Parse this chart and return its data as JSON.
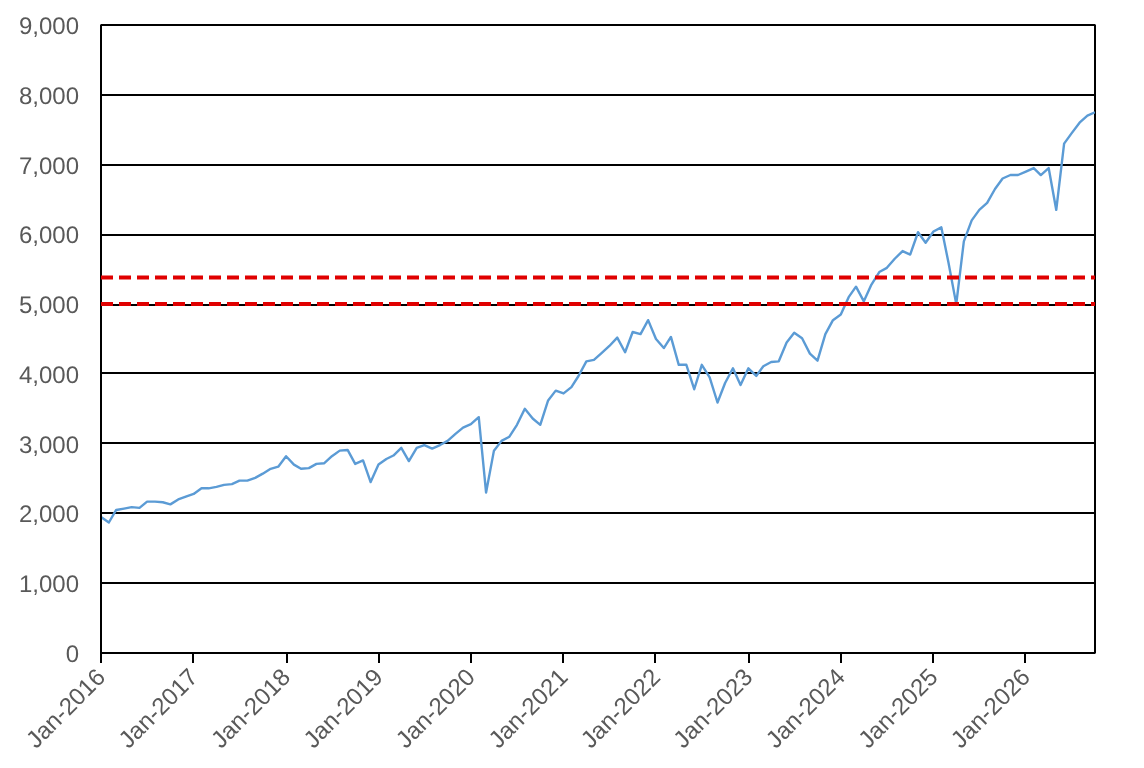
{
  "chart_data": {
    "type": "line",
    "x": [
      "2016-01",
      "2016-02",
      "2016-03",
      "2016-04",
      "2016-05",
      "2016-06",
      "2016-07",
      "2016-08",
      "2016-09",
      "2016-10",
      "2016-11",
      "2016-12",
      "2017-01",
      "2017-02",
      "2017-03",
      "2017-04",
      "2017-05",
      "2017-06",
      "2017-07",
      "2017-08",
      "2017-09",
      "2017-10",
      "2017-11",
      "2017-12",
      "2018-01",
      "2018-02",
      "2018-03",
      "2018-04",
      "2018-05",
      "2018-06",
      "2018-07",
      "2018-08",
      "2018-09",
      "2018-10",
      "2018-11",
      "2018-12",
      "2019-01",
      "2019-02",
      "2019-03",
      "2019-04",
      "2019-05",
      "2019-06",
      "2019-07",
      "2019-08",
      "2019-09",
      "2019-10",
      "2019-11",
      "2019-12",
      "2020-01",
      "2020-02",
      "2020-03",
      "2020-04",
      "2020-05",
      "2020-06",
      "2020-07",
      "2020-08",
      "2020-09",
      "2020-10",
      "2020-11",
      "2020-12",
      "2021-01",
      "2021-02",
      "2021-03",
      "2021-04",
      "2021-05",
      "2021-06",
      "2021-07",
      "2021-08",
      "2021-09",
      "2021-10",
      "2021-11",
      "2021-12",
      "2022-01",
      "2022-02",
      "2022-03",
      "2022-04",
      "2022-05",
      "2022-06",
      "2022-07",
      "2022-08",
      "2022-09",
      "2022-10",
      "2022-11",
      "2022-12",
      "2023-01",
      "2023-02",
      "2023-03",
      "2023-04",
      "2023-05",
      "2023-06",
      "2023-07",
      "2023-08",
      "2023-09",
      "2023-10",
      "2023-11",
      "2023-12",
      "2024-01",
      "2024-02",
      "2024-03",
      "2024-04",
      "2024-05",
      "2024-06",
      "2024-07",
      "2024-08",
      "2024-09",
      "2024-10",
      "2024-11",
      "2024-12",
      "2025-01",
      "2025-02",
      "2025-03",
      "2025-04",
      "2025-05",
      "2025-06",
      "2025-07",
      "2025-08",
      "2025-09",
      "2025-10",
      "2025-11",
      "2025-12",
      "2026-01",
      "2026-02",
      "2026-03",
      "2026-04",
      "2026-05",
      "2026-06",
      "2026-07",
      "2026-08",
      "2026-09",
      "2026-10"
    ],
    "series": [
      {
        "color": "#5b9bd5",
        "values": [
          1950,
          1870,
          2050,
          2070,
          2090,
          2080,
          2170,
          2170,
          2160,
          2130,
          2200,
          2240,
          2280,
          2360,
          2360,
          2380,
          2410,
          2420,
          2470,
          2470,
          2510,
          2570,
          2640,
          2670,
          2820,
          2700,
          2640,
          2650,
          2710,
          2720,
          2820,
          2900,
          2910,
          2710,
          2760,
          2450,
          2700,
          2780,
          2830,
          2940,
          2750,
          2940,
          2980,
          2930,
          2980,
          3040,
          3140,
          3230,
          3280,
          3380,
          2300,
          2900,
          3040,
          3100,
          3270,
          3500,
          3360,
          3270,
          3620,
          3760,
          3720,
          3810,
          3970,
          4180,
          4200,
          4300,
          4400,
          4520,
          4310,
          4600,
          4570,
          4770,
          4500,
          4370,
          4530,
          4130,
          4130,
          3780,
          4130,
          3950,
          3590,
          3870,
          4080,
          3840,
          4080,
          3970,
          4110,
          4170,
          4180,
          4450,
          4590,
          4510,
          4290,
          4190,
          4570,
          4770,
          4850,
          5100,
          5250,
          5040,
          5280,
          5460,
          5520,
          5650,
          5760,
          5710,
          6030,
          5880,
          6040,
          6100,
          5600,
          5000,
          5900,
          6200,
          6350,
          6450,
          6650,
          6800,
          6850,
          6850,
          6900,
          6950,
          6850,
          6950,
          6350,
          7300,
          7450,
          7600,
          7700,
          7750
        ]
      }
    ],
    "xlim": [
      "2016-01",
      "2026-10"
    ],
    "xticks": [
      {
        "value": "2016-01",
        "label": "Jan-2016"
      },
      {
        "value": "2017-01",
        "label": "Jan-2017"
      },
      {
        "value": "2018-01",
        "label": "Jan-2018"
      },
      {
        "value": "2019-01",
        "label": "Jan-2019"
      },
      {
        "value": "2020-01",
        "label": "Jan-2020"
      },
      {
        "value": "2021-01",
        "label": "Jan-2021"
      },
      {
        "value": "2022-01",
        "label": "Jan-2022"
      },
      {
        "value": "2023-01",
        "label": "Jan-2023"
      },
      {
        "value": "2024-01",
        "label": "Jan-2024"
      },
      {
        "value": "2025-01",
        "label": "Jan-2025"
      },
      {
        "value": "2026-01",
        "label": "Jan-2026"
      }
    ],
    "ylim": [
      0,
      9000
    ],
    "yticks": [
      0,
      {
        "value": 1000,
        "label": "1,000"
      },
      {
        "value": 2000,
        "label": "2,000"
      },
      {
        "value": 3000,
        "label": "3,000"
      },
      {
        "value": 4000,
        "label": "4,000"
      },
      {
        "value": 5000,
        "label": "5,000"
      },
      {
        "value": 6000,
        "label": "6,000"
      },
      {
        "value": 7000,
        "label": "7,000"
      },
      {
        "value": 8000,
        "label": "8,000"
      },
      {
        "value": 9000,
        "label": "9,000"
      }
    ],
    "ref_lines": [
      {
        "axis": "y",
        "value": 5380,
        "color": "#e00000",
        "line_style": "dashed"
      },
      {
        "axis": "y",
        "value": 5000,
        "color": "#e00000",
        "line_style": "dashed"
      }
    ],
    "grid": "y",
    "marker": "none",
    "line_style": "solid"
  }
}
